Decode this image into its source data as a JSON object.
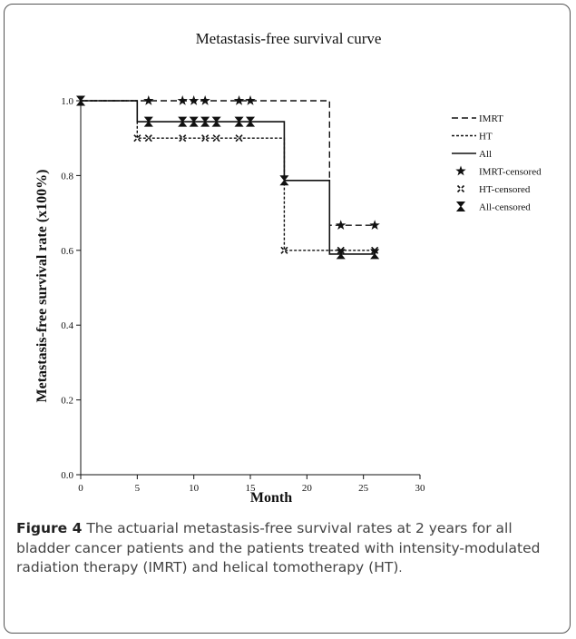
{
  "chart_data": {
    "type": "line",
    "title": "Metastasis-free survival curve",
    "xlabel": "Month",
    "ylabel": "Metastasis-free survival rate (x100%)",
    "xlim": [
      0,
      30
    ],
    "ylim": [
      0.0,
      1.0
    ],
    "xticks": [
      "0",
      "5",
      "10",
      "15",
      "20",
      "25",
      "30"
    ],
    "yticks": [
      "0.0",
      "0.2",
      "0.4",
      "0.6",
      "0.8",
      "1.0"
    ],
    "legend_position": "right",
    "series": [
      {
        "name": "IMRT",
        "style": "dashed",
        "steps": [
          [
            0,
            1.0
          ],
          [
            22,
            1.0
          ],
          [
            22,
            0.667
          ],
          [
            26,
            0.667
          ]
        ],
        "censored_name": "IMRT-censored",
        "censored": [
          [
            6,
            1.0
          ],
          [
            9,
            1.0
          ],
          [
            10,
            1.0
          ],
          [
            11,
            1.0
          ],
          [
            14,
            1.0
          ],
          [
            15,
            1.0
          ],
          [
            23,
            0.667
          ],
          [
            26,
            0.667
          ]
        ]
      },
      {
        "name": "HT",
        "style": "dotted",
        "steps": [
          [
            0,
            1.0
          ],
          [
            5,
            1.0
          ],
          [
            5,
            0.9
          ],
          [
            18,
            0.9
          ],
          [
            18,
            0.6
          ],
          [
            26,
            0.6
          ]
        ],
        "censored_name": "HT-censored",
        "censored": [
          [
            5,
            0.9
          ],
          [
            6,
            0.9
          ],
          [
            9,
            0.9
          ],
          [
            11,
            0.9
          ],
          [
            12,
            0.9
          ],
          [
            14,
            0.9
          ],
          [
            18,
            0.6
          ],
          [
            23,
            0.6
          ],
          [
            26,
            0.6
          ]
        ]
      },
      {
        "name": "All",
        "style": "solid",
        "steps": [
          [
            0,
            1.0
          ],
          [
            5,
            1.0
          ],
          [
            5,
            0.944
          ],
          [
            18,
            0.944
          ],
          [
            18,
            0.787
          ],
          [
            22,
            0.787
          ],
          [
            22,
            0.59
          ],
          [
            26,
            0.59
          ]
        ],
        "censored_name": "All-censored",
        "censored": [
          [
            0,
            1.0
          ],
          [
            6,
            0.944
          ],
          [
            9,
            0.944
          ],
          [
            10,
            0.944
          ],
          [
            11,
            0.944
          ],
          [
            12,
            0.944
          ],
          [
            14,
            0.944
          ],
          [
            15,
            0.944
          ],
          [
            18,
            0.787
          ],
          [
            23,
            0.59
          ],
          [
            26,
            0.59
          ]
        ]
      }
    ]
  },
  "caption": {
    "label": "Figure 4",
    "text": "The actuarial metastasis-free survival rates at 2 years for all bladder cancer patients and the patients treated with intensity-modulated radiation therapy (IMRT) and helical tomotherapy (HT)",
    "end": "."
  }
}
